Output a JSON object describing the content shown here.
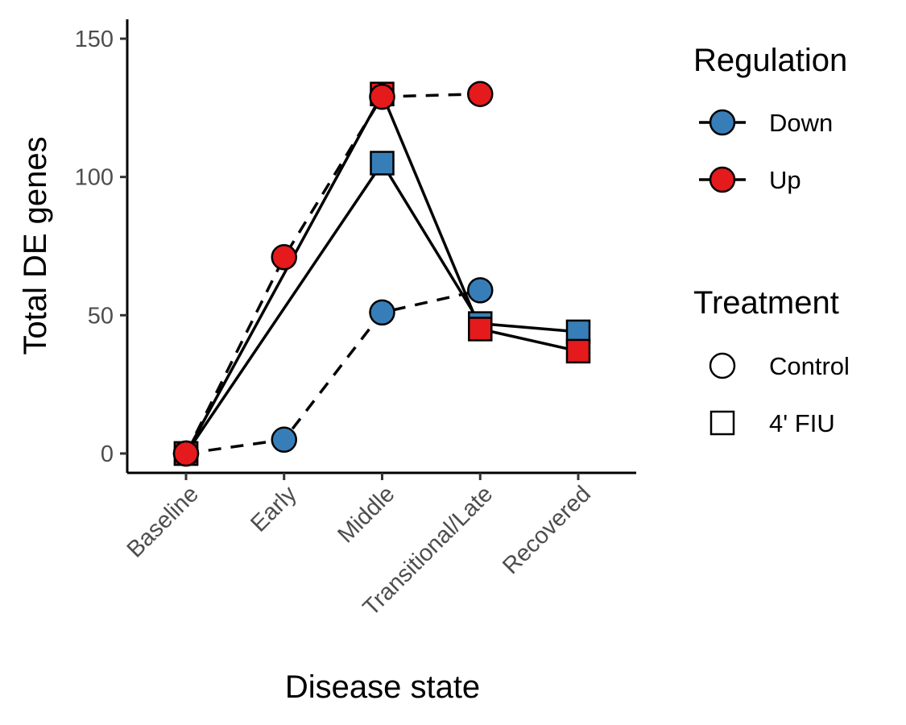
{
  "chart_data": {
    "type": "line",
    "xlabel": "Disease state",
    "ylabel": "Total DE genes",
    "categories": [
      "Baseline",
      "Early",
      "Middle",
      "Transitional/Late",
      "Recovered"
    ],
    "ylim": [
      -7,
      157
    ],
    "yticks": [
      0,
      50,
      100,
      150
    ],
    "grid": false,
    "legend_placement": "right",
    "series": [
      {
        "regulation": "Down",
        "treatment": "Control",
        "values": [
          0,
          5,
          51,
          59,
          null
        ]
      },
      {
        "regulation": "Up",
        "treatment": "Control",
        "values": [
          0,
          71,
          129,
          130,
          null
        ]
      },
      {
        "regulation": "Down",
        "treatment": "4' FIU",
        "values": [
          0,
          null,
          105,
          47,
          44
        ]
      },
      {
        "regulation": "Up",
        "treatment": "4' FIU",
        "values": [
          0,
          null,
          130,
          45,
          37
        ]
      }
    ],
    "colors": {
      "Down": "#377eb8",
      "Up": "#e41a1c"
    },
    "line_styles": {
      "Control": "dashed",
      "4' FIU": "solid"
    },
    "legend": {
      "regulation": {
        "title": "Regulation",
        "items": [
          "Down",
          "Up"
        ]
      },
      "treatment": {
        "title": "Treatment",
        "items": [
          "Control",
          "4' FIU"
        ]
      }
    }
  }
}
